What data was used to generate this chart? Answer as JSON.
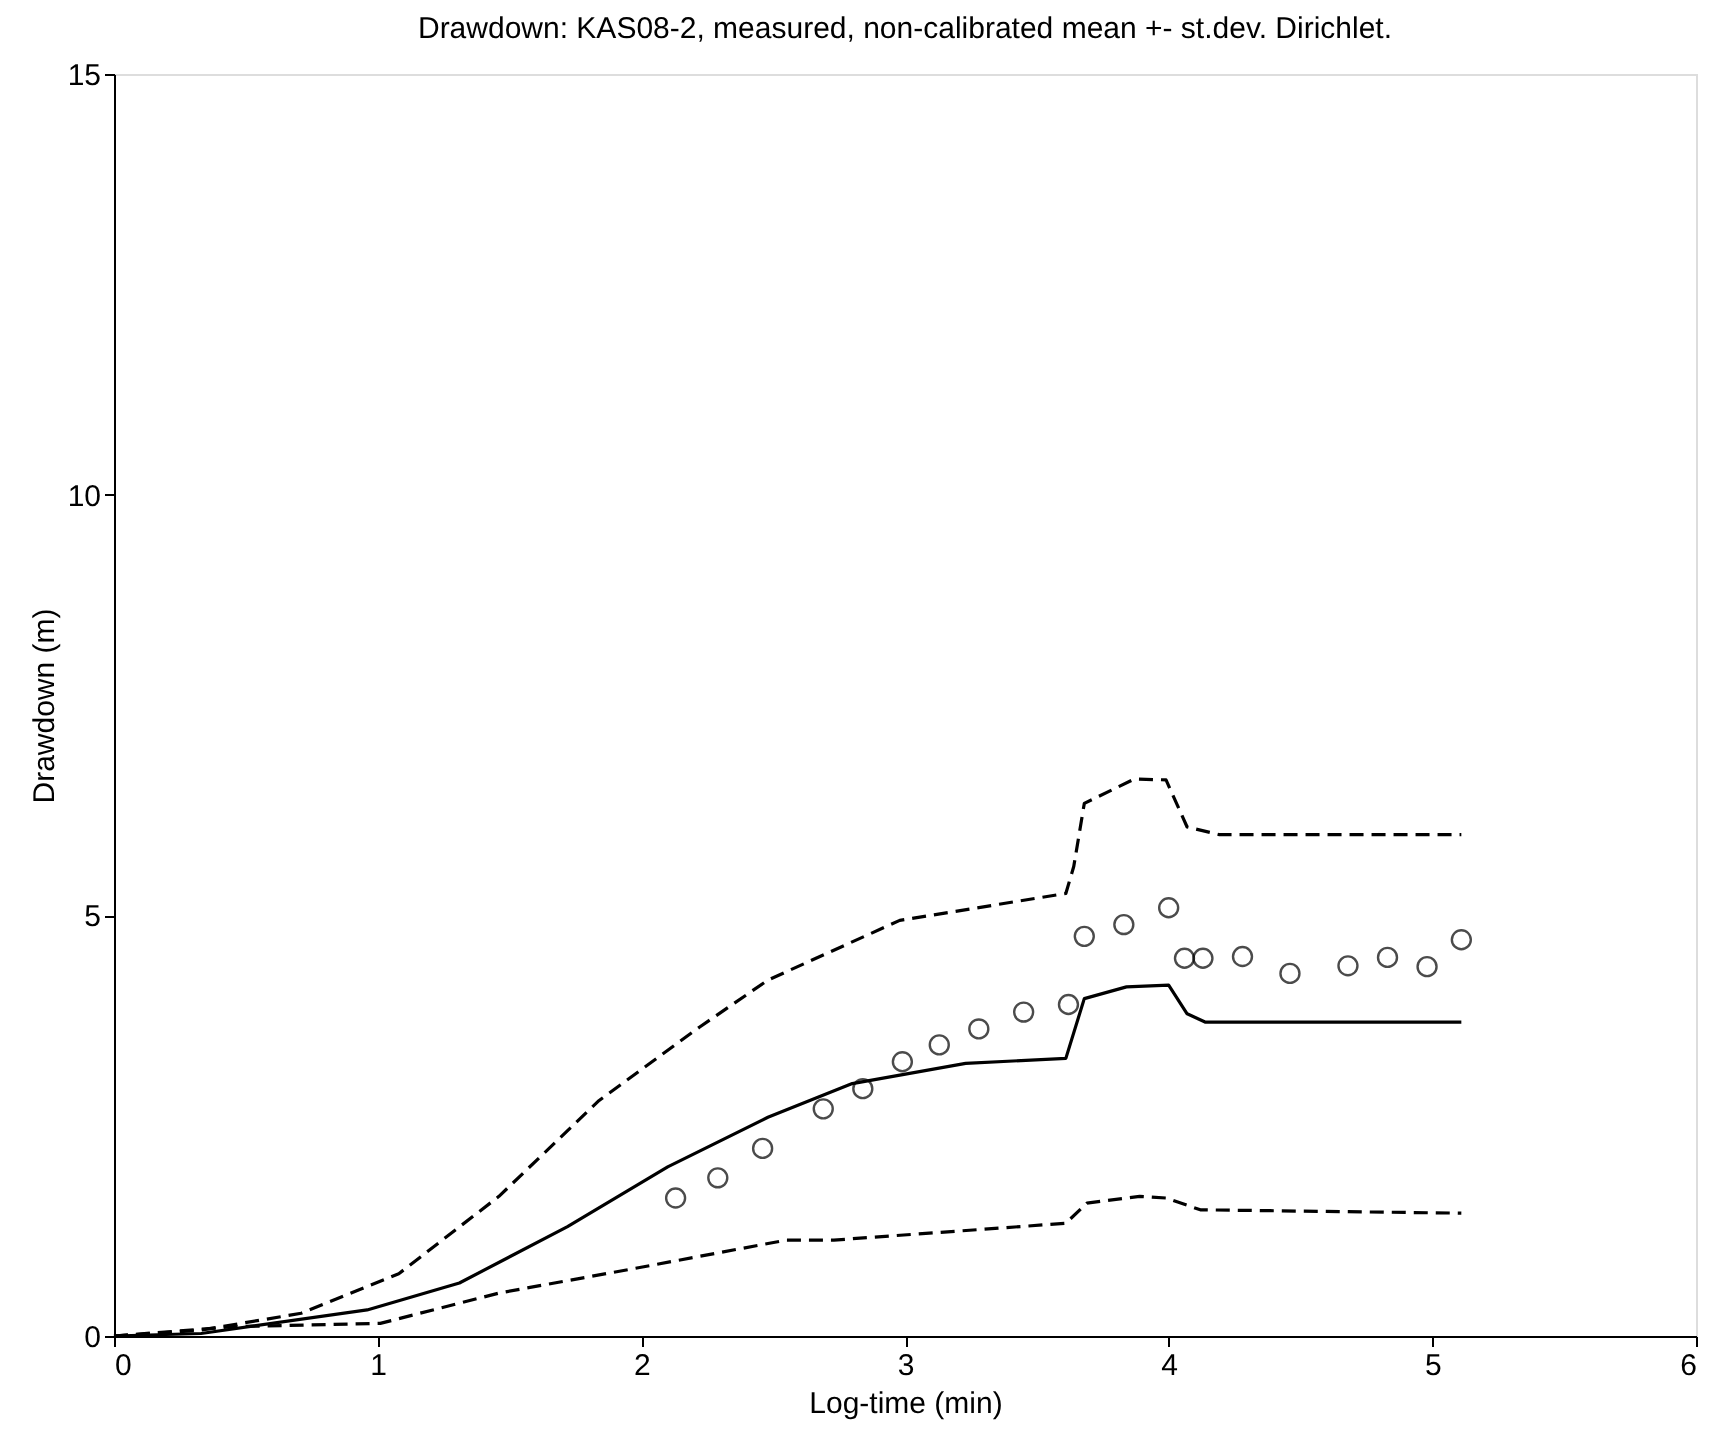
{
  "chart_data": {
    "type": "line",
    "title": "Drawdown: KAS08-2, measured, non-calibrated mean +- st.dev. Dirichlet.",
    "xlabel": "Log-time (min)",
    "ylabel": "Drawdown (m)",
    "xlim": [
      0,
      6
    ],
    "ylim": [
      0,
      15
    ],
    "xticks": [
      0,
      1,
      2,
      3,
      4,
      5,
      6
    ],
    "yticks": [
      0,
      5,
      10,
      15
    ],
    "grid": false,
    "series": [
      {
        "line_style": "solid",
        "color": "#000000",
        "x": [
          0,
          0.33,
          0.96,
          1.31,
          1.72,
          2.1,
          2.48,
          2.8,
          3.23,
          3.61,
          3.68,
          3.84,
          4.0,
          4.07,
          4.14,
          5.11
        ],
        "values": [
          0,
          0.03,
          0.31,
          0.63,
          1.3,
          2.01,
          2.6,
          3.0,
          3.24,
          3.3,
          4.01,
          4.15,
          4.17,
          3.83,
          3.73,
          3.73
        ]
      },
      {
        "line_style": "dashed",
        "color": "#000000",
        "x": [
          0,
          0.33,
          0.71,
          1.08,
          1.46,
          1.84,
          2.22,
          2.48,
          2.98,
          3.61,
          3.64,
          3.68,
          3.87,
          3.99,
          4.07,
          4.19,
          5.11
        ],
        "values": [
          0,
          0.07,
          0.27,
          0.74,
          1.66,
          2.8,
          3.67,
          4.23,
          4.94,
          5.26,
          5.58,
          6.33,
          6.62,
          6.61,
          6.05,
          5.96,
          5.96
        ]
      },
      {
        "line_style": "dashed",
        "color": "#000000",
        "x": [
          0,
          0.45,
          1.01,
          1.46,
          1.97,
          2.55,
          2.73,
          3.61,
          3.69,
          3.89,
          3.99,
          4.12,
          5.11
        ],
        "values": [
          0,
          0.11,
          0.15,
          0.51,
          0.8,
          1.14,
          1.14,
          1.34,
          1.58,
          1.66,
          1.64,
          1.5,
          1.46
        ]
      },
      {
        "type": "scatter",
        "marker": "circle",
        "color": "#000000",
        "x": [
          2.13,
          2.29,
          2.46,
          2.69,
          2.84,
          2.99,
          3.13,
          3.28,
          3.45,
          3.62,
          3.68,
          3.83,
          4.0,
          4.06,
          4.13,
          4.28,
          4.46,
          4.68,
          4.83,
          4.98,
          5.11
        ],
        "values": [
          1.64,
          1.88,
          2.23,
          2.7,
          2.94,
          3.26,
          3.46,
          3.65,
          3.85,
          3.94,
          4.75,
          4.89,
          5.09,
          4.49,
          4.49,
          4.51,
          4.31,
          4.4,
          4.5,
          4.39,
          4.71
        ]
      }
    ]
  }
}
